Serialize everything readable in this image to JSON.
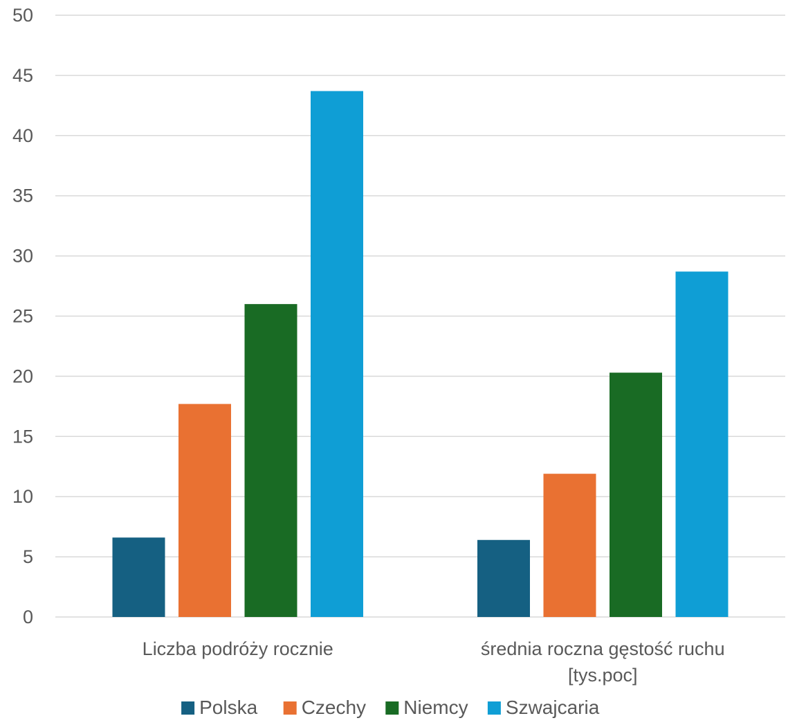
{
  "chart_data": {
    "type": "bar",
    "title": "",
    "xlabel": "",
    "ylabel": "",
    "categories": [
      [
        "Liczba podróży rocznie"
      ],
      [
        "średnia roczna gęstość ruchu",
        "[tys.poc]"
      ]
    ],
    "series": [
      {
        "name": "Polska",
        "color": "#156082",
        "values": [
          6.6,
          6.4
        ]
      },
      {
        "name": "Czechy",
        "color": "#E97132",
        "values": [
          17.7,
          11.9
        ]
      },
      {
        "name": "Niemcy",
        "color": "#196B24",
        "values": [
          26.0,
          20.3
        ]
      },
      {
        "name": "Szwajcaria",
        "color": "#0F9ED5",
        "values": [
          43.7,
          28.7
        ]
      }
    ],
    "ylim": [
      0,
      50
    ],
    "yticks": [
      0,
      5,
      10,
      15,
      20,
      25,
      30,
      35,
      40,
      45,
      50
    ],
    "grid": true,
    "legend": "bottom",
    "colors": {
      "gridline": "#D9D9D9",
      "text": "#595959"
    }
  }
}
